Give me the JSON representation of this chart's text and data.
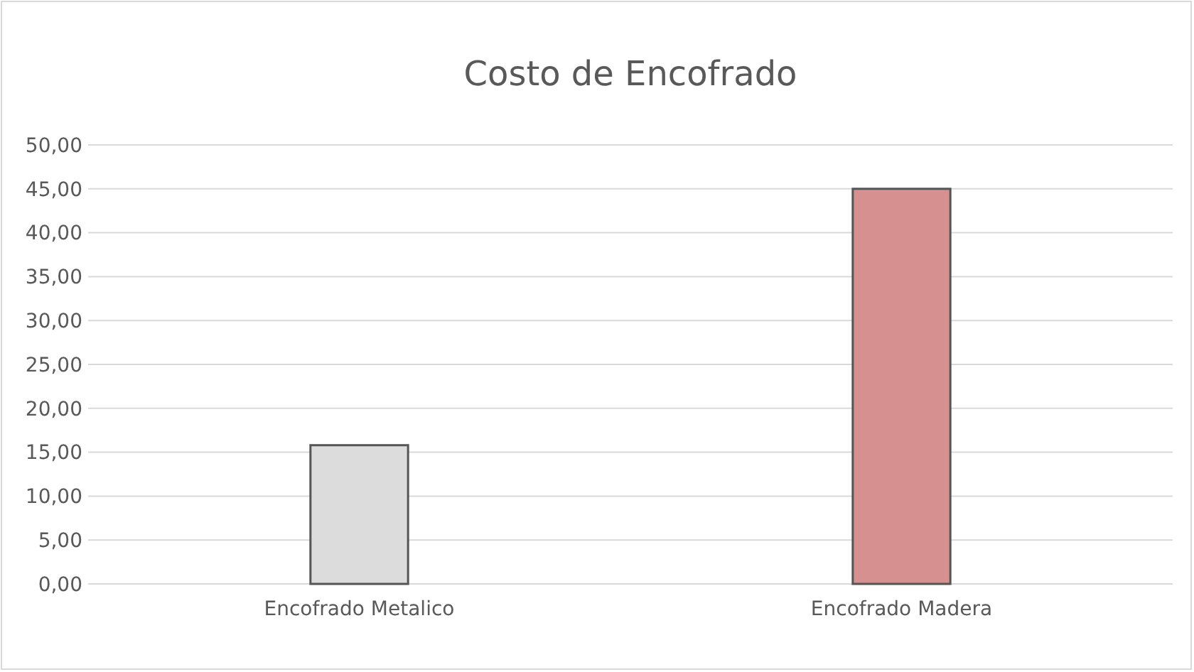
{
  "chart_data": {
    "type": "bar",
    "title": "Costo de Encofrado",
    "categories": [
      "Encofrado Metalico",
      "Encofrado Madera"
    ],
    "values": [
      15.8,
      45
    ],
    "colors": [
      "#dcdcdc",
      "#d69090"
    ],
    "ylim": [
      0,
      50
    ],
    "yticks": [
      {
        "value": 0,
        "label": "0,00"
      },
      {
        "value": 5,
        "label": "5,00"
      },
      {
        "value": 10,
        "label": "10,00"
      },
      {
        "value": 15,
        "label": "15,00"
      },
      {
        "value": 20,
        "label": "20,00"
      },
      {
        "value": 25,
        "label": "25,00"
      },
      {
        "value": 30,
        "label": "30,00"
      },
      {
        "value": 35,
        "label": "35,00"
      },
      {
        "value": 40,
        "label": "40,00"
      },
      {
        "value": 45,
        "label": "45,00"
      },
      {
        "value": 50,
        "label": "50,00"
      }
    ],
    "grid": true
  }
}
